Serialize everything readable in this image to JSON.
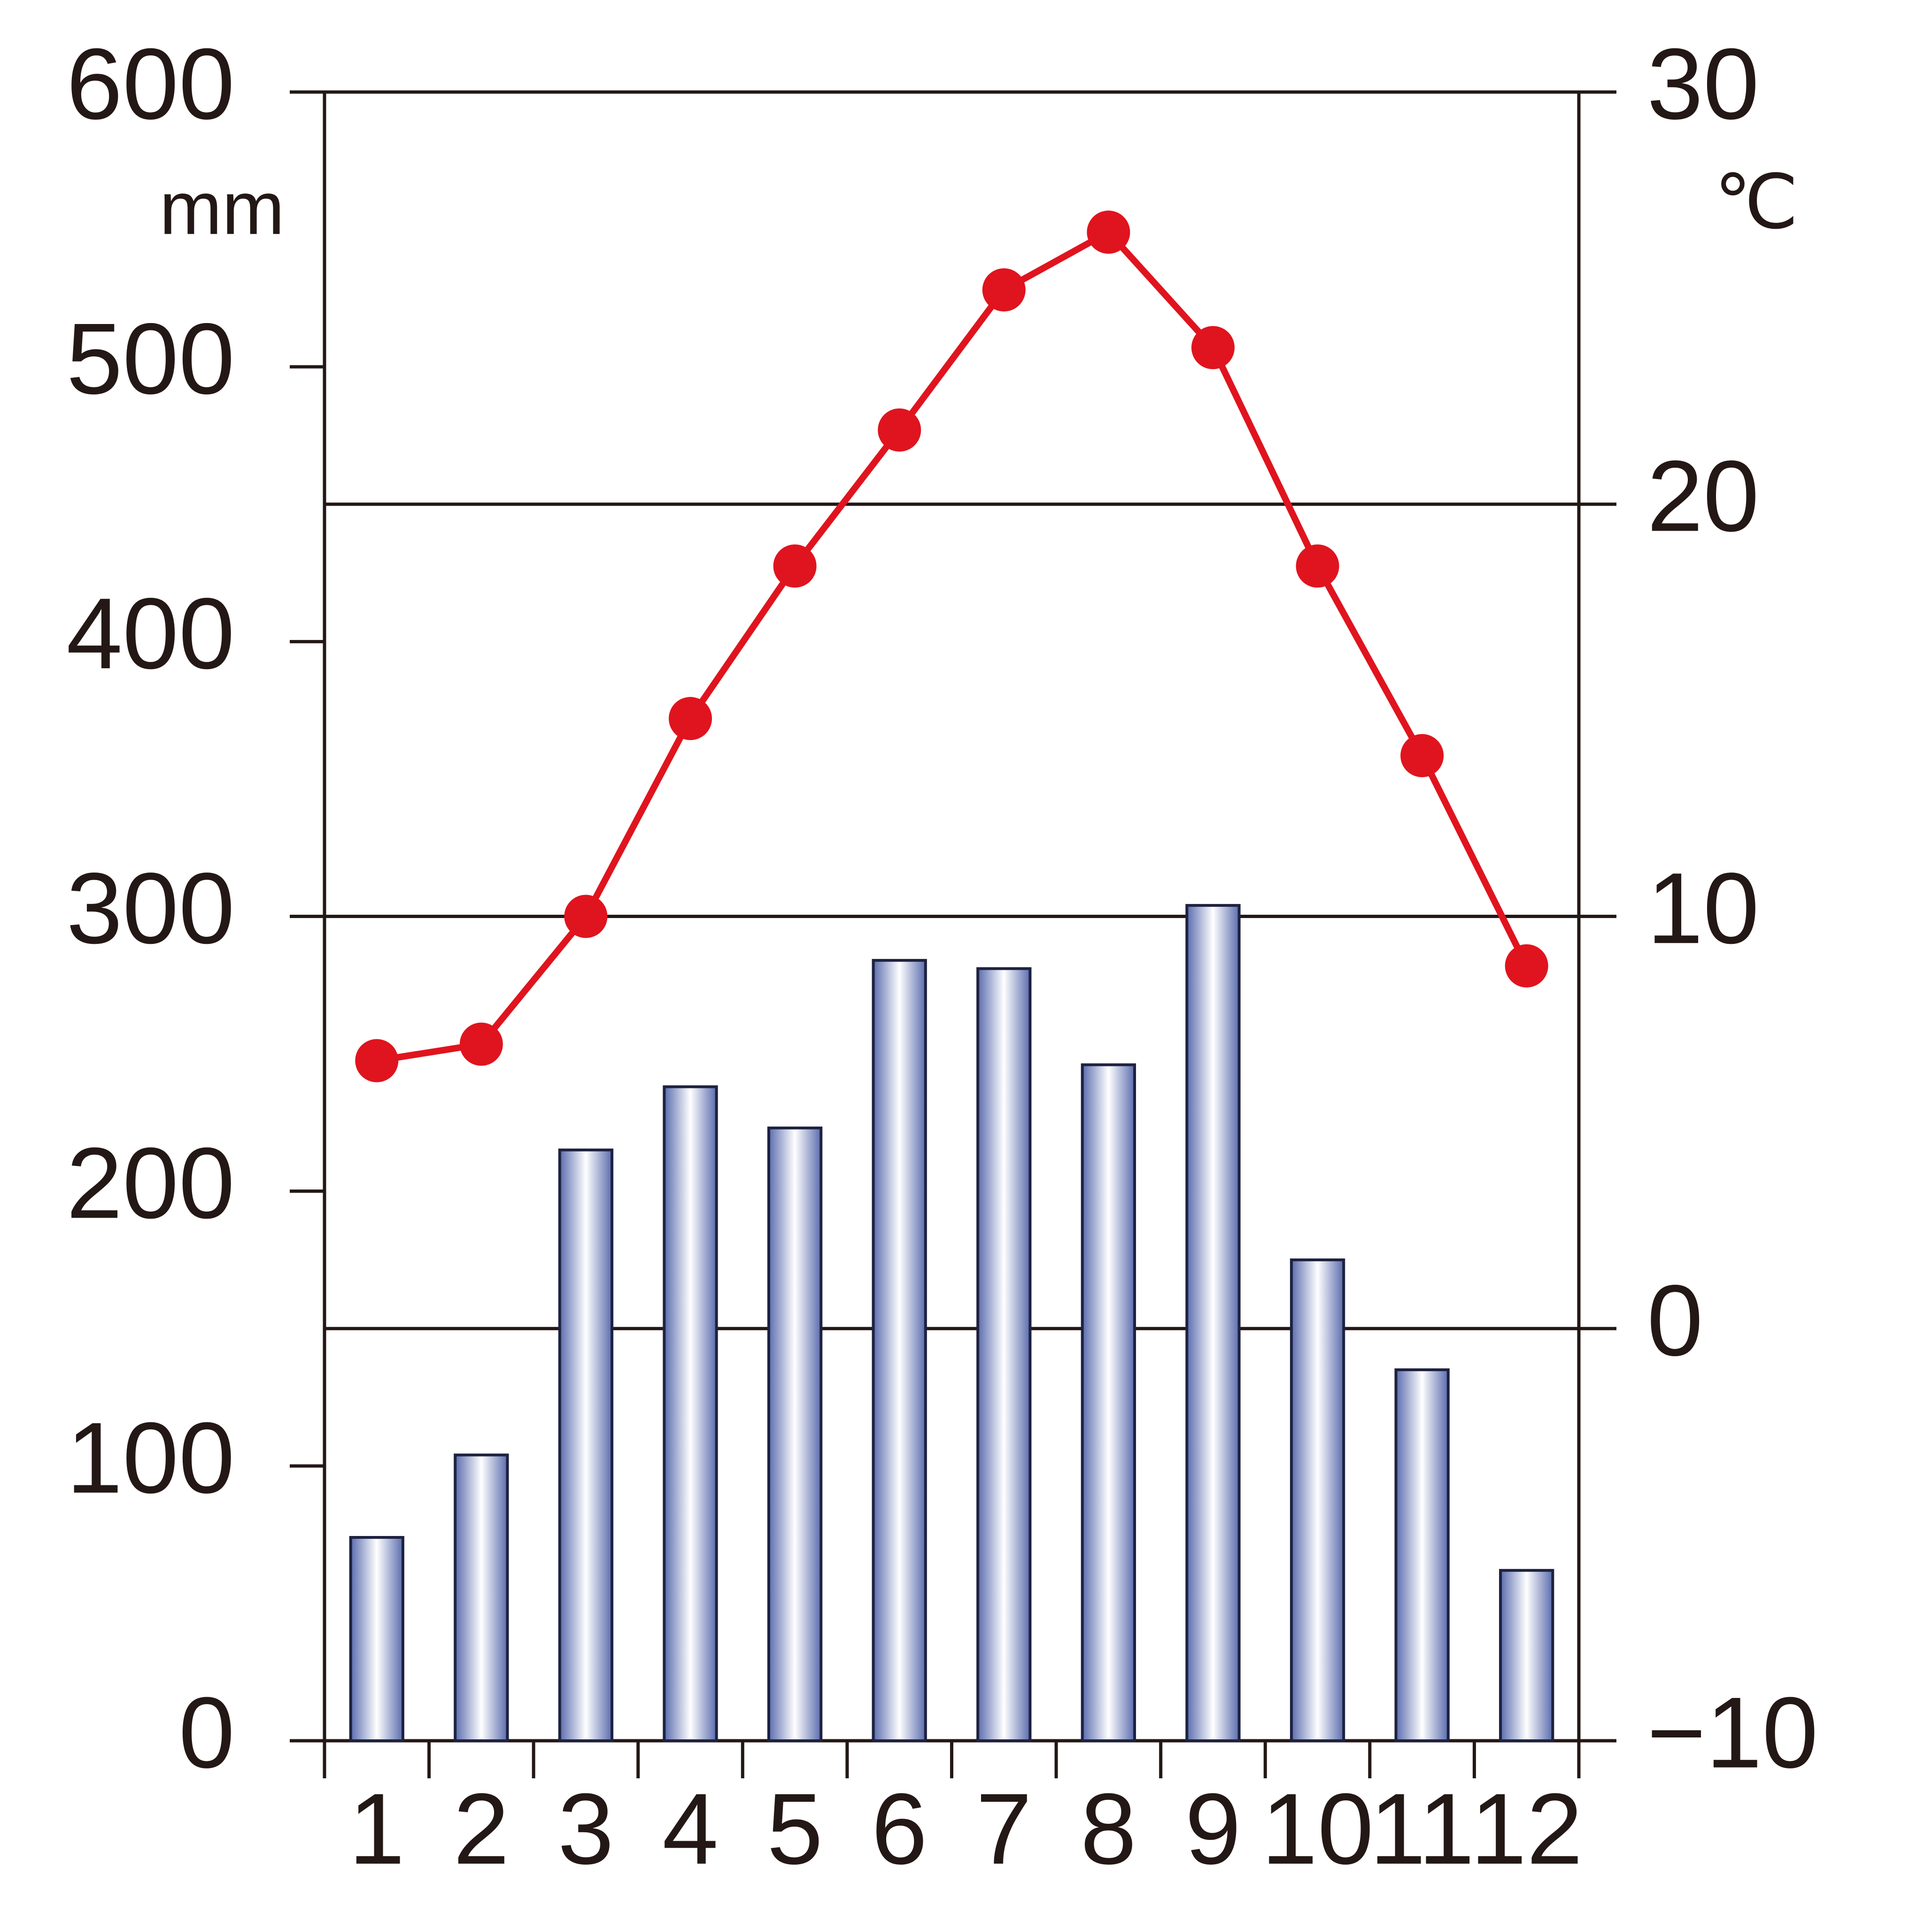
{
  "chart_data": {
    "type": "bar-line",
    "categories": [
      "1",
      "2",
      "3",
      "4",
      "5",
      "6",
      "7",
      "8",
      "9",
      "10",
      "11",
      "12"
    ],
    "series": [
      {
        "type": "bar",
        "axis": "y",
        "color": "#5a6cae",
        "values": [
          74,
          104,
          215,
          238,
          223,
          284,
          281,
          246,
          304,
          175,
          135,
          62
        ]
      },
      {
        "type": "line",
        "axis": "y2",
        "color": "#e0141e",
        "values": [
          6.5,
          6.9,
          10.0,
          14.8,
          18.5,
          21.8,
          25.2,
          26.6,
          23.8,
          18.5,
          13.9,
          8.8
        ]
      }
    ],
    "ylabel": "mm",
    "y2label": "℃",
    "ylim": [
      0,
      600
    ],
    "yticks": [
      0,
      100,
      200,
      300,
      400,
      500,
      600
    ],
    "y2lim": [
      -10,
      30
    ],
    "y2ticks": [
      {
        "value": -10,
        "label": "−10"
      },
      0,
      10,
      20,
      30
    ],
    "grid": "y2"
  }
}
